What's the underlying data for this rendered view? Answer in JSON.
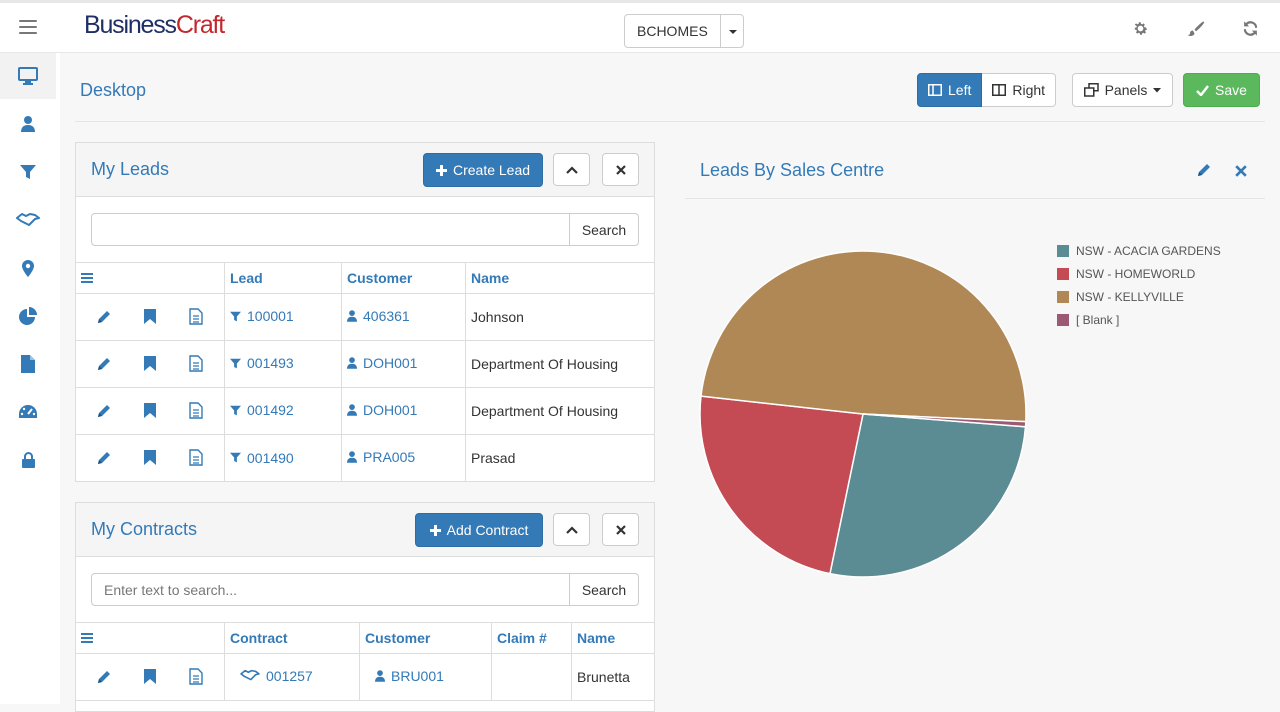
{
  "brand": {
    "part1": "Business",
    "part2": "Craft"
  },
  "company": {
    "selected": "BCHOMES"
  },
  "page": {
    "title": "Desktop"
  },
  "layout_toggle": {
    "left": "Left",
    "right": "Right"
  },
  "toolbar": {
    "panels": "Panels",
    "save": "Save"
  },
  "sidebar": {
    "items": [
      "desktop-icon",
      "user-icon",
      "filter-icon",
      "handshake-icon",
      "map-marker-icon",
      "pie-chart-icon",
      "file-icon",
      "dashboard-icon",
      "lock-icon"
    ]
  },
  "leads": {
    "title": "My Leads",
    "create_label": "Create Lead",
    "search_placeholder": "",
    "search_label": "Search",
    "columns": [
      "Lead",
      "Customer",
      "Name"
    ],
    "rows": [
      {
        "lead": "100001",
        "customer": "406361",
        "name": "Johnson"
      },
      {
        "lead": "001493",
        "customer": "DOH001",
        "name": "Department Of Housing"
      },
      {
        "lead": "001492",
        "customer": "DOH001",
        "name": "Department Of Housing"
      },
      {
        "lead": "001490",
        "customer": "PRA005",
        "name": "Prasad"
      }
    ]
  },
  "contracts": {
    "title": "My Contracts",
    "add_label": "Add Contract",
    "search_placeholder": "Enter text to search...",
    "search_label": "Search",
    "columns": [
      "Contract",
      "Customer",
      "Claim #",
      "Name"
    ],
    "rows": [
      {
        "contract": "001257",
        "customer": "BRU001",
        "claim": "",
        "name": "Brunetta"
      }
    ]
  },
  "chart_panel": {
    "title": "Leads By Sales Centre"
  },
  "chart_data": {
    "type": "pie",
    "title": "Leads By Sales Centre",
    "categories": [
      "NSW - ACACIA GARDENS",
      "NSW - HOMEWORLD",
      "NSW - KELLYVILLE",
      "[ Blank ]"
    ],
    "values": [
      27,
      23.5,
      49,
      0.5
    ],
    "colors": [
      "#5b8c94",
      "#c44a53",
      "#b08856",
      "#9b5a72"
    ],
    "legend": "right"
  }
}
